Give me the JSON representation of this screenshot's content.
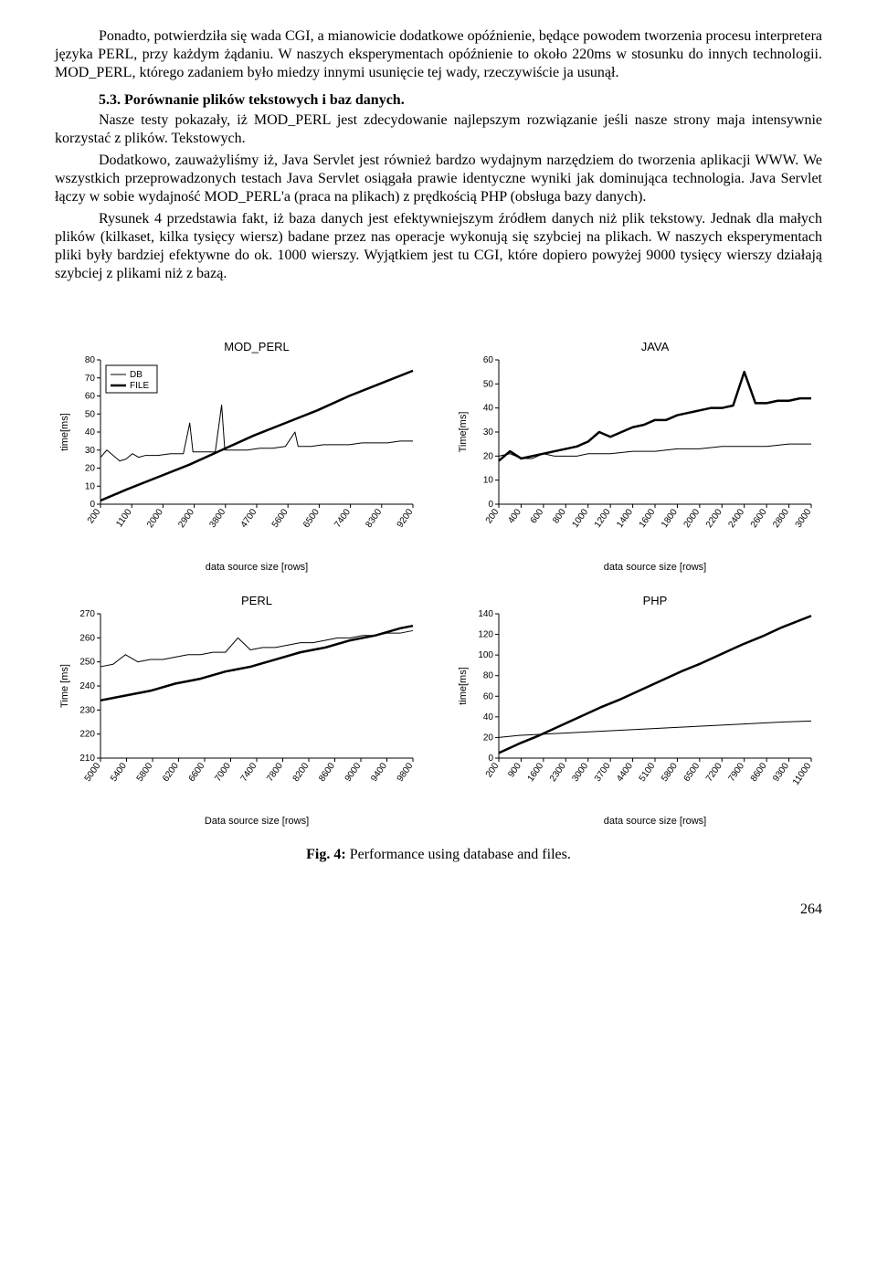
{
  "text": {
    "p1": "Ponadto, potwierdziła się wada CGI, a mianowicie dodatkowe opóźnienie, będące powodem tworzenia procesu interpretera języka PERL, przy każdym żądaniu. W naszych eksperymentach opóźnienie to około 220ms w stosunku do innych technologii. MOD_PERL, którego zadaniem było miedzy innymi usunięcie tej wady, rzeczywiście ja usunął.",
    "sec": "5.3.    Porównanie plików tekstowych i baz danych.",
    "p2": "Nasze testy pokazały, iż MOD_PERL jest zdecydowanie najlepszym rozwiązanie jeśli nasze strony maja intensywnie korzystać z plików. Tekstowych.",
    "p3": "Dodatkowo, zauważyliśmy iż, Java Servlet jest również bardzo wydajnym narzędziem do tworzenia aplikacji WWW.  We wszystkich przeprowadzonych testach Java Servlet osiągała prawie identyczne wyniki jak dominująca technologia. Java Servlet łączy w sobie wydajność MOD_PERL'a (praca na plikach) z prędkością PHP (obsługa bazy danych).",
    "p4": "Rysunek  4  przedstawia fakt, iż baza danych jest efektywniejszym źródłem danych niż plik tekstowy. Jednak dla małych plików (kilkaset, kilka tysięcy wiersz) badane przez nas operacje wykonują się szybciej na plikach.  W naszych eksperymentach pliki były bardziej efektywne do ok. 1000 wierszy. Wyjątkiem jest tu CGI, które dopiero powyżej 9000 tysięcy wierszy działają szybciej z plikami niż z bazą.",
    "fig_label": "Fig. 4:",
    "fig_text": " Performance using database and files.",
    "page": "264"
  },
  "style": {
    "text_color": "#000000",
    "bg_color": "#ffffff",
    "line_thin": 1,
    "line_thick": 2.5,
    "axis_color": "#000000",
    "grid_color": "#000000",
    "chart_font": "Arial",
    "title_fontsize": 13,
    "label_fontsize": 11,
    "tick_fontsize": 10
  },
  "charts": {
    "mod_perl": {
      "title": "MOD_PERL",
      "ylabel": "time[ms]",
      "xlabel": "data source size [rows]",
      "yticks": [
        0,
        10,
        20,
        30,
        40,
        50,
        60,
        70,
        80
      ],
      "xticks": [
        "200",
        "1100",
        "2000",
        "2900",
        "3800",
        "4700",
        "5600",
        "6500",
        "7400",
        "8300",
        "9200"
      ],
      "xlim": [
        200,
        10000
      ],
      "ylim": [
        0,
        80
      ],
      "legend": [
        "DB",
        "FILE"
      ],
      "db": [
        [
          200,
          26
        ],
        [
          400,
          30
        ],
        [
          800,
          24
        ],
        [
          1000,
          25
        ],
        [
          1200,
          28
        ],
        [
          1400,
          26
        ],
        [
          1600,
          27
        ],
        [
          2000,
          27
        ],
        [
          2400,
          28
        ],
        [
          2800,
          28
        ],
        [
          3000,
          45
        ],
        [
          3100,
          29
        ],
        [
          3400,
          29
        ],
        [
          3800,
          29
        ],
        [
          4000,
          55
        ],
        [
          4100,
          30
        ],
        [
          4400,
          30
        ],
        [
          4800,
          30
        ],
        [
          5200,
          31
        ],
        [
          5600,
          31
        ],
        [
          6000,
          32
        ],
        [
          6300,
          40
        ],
        [
          6400,
          32
        ],
        [
          6800,
          32
        ],
        [
          7200,
          33
        ],
        [
          7600,
          33
        ],
        [
          8000,
          33
        ],
        [
          8400,
          34
        ],
        [
          8800,
          34
        ],
        [
          9200,
          34
        ],
        [
          9600,
          35
        ],
        [
          10000,
          35
        ]
      ],
      "file": [
        [
          200,
          2
        ],
        [
          1000,
          8
        ],
        [
          2000,
          15
        ],
        [
          3000,
          22
        ],
        [
          4000,
          30
        ],
        [
          5000,
          38
        ],
        [
          6000,
          45
        ],
        [
          7000,
          52
        ],
        [
          8000,
          60
        ],
        [
          9000,
          67
        ],
        [
          10000,
          74
        ]
      ]
    },
    "java": {
      "title": "JAVA",
      "ylabel": "Time[ms]",
      "xlabel": "data source size [rows]",
      "yticks": [
        0,
        10,
        20,
        30,
        40,
        50,
        60
      ],
      "xticks": [
        "200",
        "400",
        "600",
        "800",
        "1000",
        "1200",
        "1400",
        "1600",
        "1800",
        "2000",
        "2200",
        "2400",
        "2600",
        "2800",
        "3000"
      ],
      "xlim": [
        200,
        3000
      ],
      "ylim": [
        0,
        60
      ],
      "db": [
        [
          200,
          20
        ],
        [
          300,
          21
        ],
        [
          400,
          19
        ],
        [
          500,
          19
        ],
        [
          600,
          21
        ],
        [
          700,
          20
        ],
        [
          800,
          20
        ],
        [
          900,
          20
        ],
        [
          1000,
          21
        ],
        [
          1200,
          21
        ],
        [
          1400,
          22
        ],
        [
          1600,
          22
        ],
        [
          1800,
          23
        ],
        [
          2000,
          23
        ],
        [
          2200,
          24
        ],
        [
          2400,
          24
        ],
        [
          2600,
          24
        ],
        [
          2800,
          25
        ],
        [
          3000,
          25
        ]
      ],
      "file": [
        [
          200,
          18
        ],
        [
          300,
          22
        ],
        [
          400,
          19
        ],
        [
          500,
          20
        ],
        [
          600,
          21
        ],
        [
          700,
          22
        ],
        [
          800,
          23
        ],
        [
          900,
          24
        ],
        [
          1000,
          26
        ],
        [
          1100,
          30
        ],
        [
          1200,
          28
        ],
        [
          1300,
          30
        ],
        [
          1400,
          32
        ],
        [
          1500,
          33
        ],
        [
          1600,
          35
        ],
        [
          1700,
          35
        ],
        [
          1800,
          37
        ],
        [
          1900,
          38
        ],
        [
          2000,
          39
        ],
        [
          2100,
          40
        ],
        [
          2200,
          40
        ],
        [
          2300,
          41
        ],
        [
          2400,
          55
        ],
        [
          2500,
          42
        ],
        [
          2600,
          42
        ],
        [
          2700,
          43
        ],
        [
          2800,
          43
        ],
        [
          2900,
          44
        ],
        [
          3000,
          44
        ]
      ]
    },
    "perl": {
      "title": "PERL",
      "ylabel": "Time [ms]",
      "xlabel": "Data source size [rows]",
      "yticks": [
        210,
        220,
        230,
        240,
        250,
        260,
        270
      ],
      "xticks": [
        "5000",
        "5400",
        "5800",
        "6200",
        "6600",
        "7000",
        "7400",
        "7800",
        "8200",
        "8600",
        "9000",
        "9400",
        "9800"
      ],
      "xlim": [
        5000,
        10000
      ],
      "ylim": [
        210,
        270
      ],
      "db": [
        [
          5000,
          248
        ],
        [
          5200,
          249
        ],
        [
          5400,
          253
        ],
        [
          5600,
          250
        ],
        [
          5800,
          251
        ],
        [
          6000,
          251
        ],
        [
          6200,
          252
        ],
        [
          6400,
          253
        ],
        [
          6600,
          253
        ],
        [
          6800,
          254
        ],
        [
          7000,
          254
        ],
        [
          7200,
          260
        ],
        [
          7400,
          255
        ],
        [
          7600,
          256
        ],
        [
          7800,
          256
        ],
        [
          8000,
          257
        ],
        [
          8200,
          258
        ],
        [
          8400,
          258
        ],
        [
          8600,
          259
        ],
        [
          8800,
          260
        ],
        [
          9000,
          260
        ],
        [
          9200,
          261
        ],
        [
          9400,
          261
        ],
        [
          9600,
          262
        ],
        [
          9800,
          262
        ],
        [
          10000,
          263
        ]
      ],
      "file": [
        [
          5000,
          234
        ],
        [
          5400,
          236
        ],
        [
          5800,
          238
        ],
        [
          6200,
          241
        ],
        [
          6600,
          243
        ],
        [
          7000,
          246
        ],
        [
          7400,
          248
        ],
        [
          7800,
          251
        ],
        [
          8200,
          254
        ],
        [
          8600,
          256
        ],
        [
          9000,
          259
        ],
        [
          9400,
          261
        ],
        [
          9800,
          264
        ],
        [
          10000,
          265
        ]
      ]
    },
    "php": {
      "title": "PHP",
      "ylabel": "time[ms]",
      "xlabel": "data source size [rows]",
      "yticks": [
        0,
        20,
        40,
        60,
        80,
        100,
        120,
        140
      ],
      "xticks": [
        "200",
        "900",
        "1600",
        "2300",
        "3000",
        "3700",
        "4400",
        "5100",
        "5800",
        "6500",
        "7200",
        "7900",
        "8600",
        "9300",
        "11000"
      ],
      "xlim": [
        200,
        11000
      ],
      "ylim": [
        0,
        140
      ],
      "db": [
        [
          200,
          20
        ],
        [
          900,
          22
        ],
        [
          1600,
          23
        ],
        [
          2300,
          24
        ],
        [
          3000,
          25
        ],
        [
          3700,
          26
        ],
        [
          4400,
          27
        ],
        [
          5100,
          28
        ],
        [
          5800,
          29
        ],
        [
          6500,
          30
        ],
        [
          7200,
          31
        ],
        [
          7900,
          32
        ],
        [
          8600,
          33
        ],
        [
          9300,
          34
        ],
        [
          10000,
          35
        ],
        [
          11000,
          36
        ]
      ],
      "file": [
        [
          200,
          5
        ],
        [
          900,
          14
        ],
        [
          1600,
          22
        ],
        [
          2300,
          31
        ],
        [
          3000,
          40
        ],
        [
          3700,
          49
        ],
        [
          4400,
          57
        ],
        [
          5100,
          66
        ],
        [
          5800,
          75
        ],
        [
          6500,
          84
        ],
        [
          7200,
          92
        ],
        [
          7900,
          101
        ],
        [
          8600,
          110
        ],
        [
          9300,
          118
        ],
        [
          10000,
          127
        ],
        [
          11000,
          138
        ]
      ]
    }
  }
}
